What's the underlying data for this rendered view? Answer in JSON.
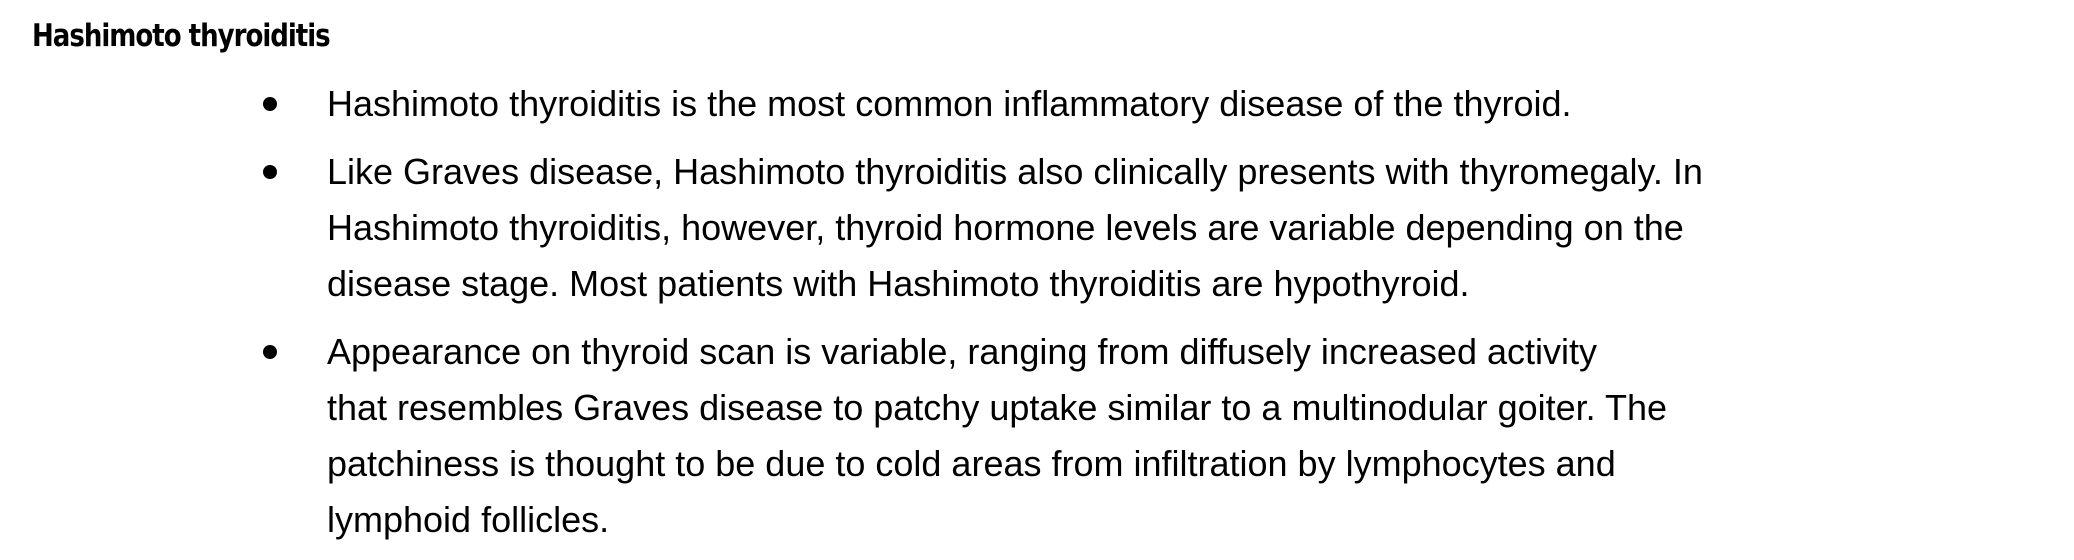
{
  "heading": "Hashimoto thyroiditis",
  "bullets": [
    {
      "lines": [
        "Hashimoto thyroiditis is the most common inflammatory disease of the thyroid."
      ]
    },
    {
      "lines": [
        "Like Graves disease, Hashimoto thyroiditis also clinically presents with thyromegaly. In",
        "Hashimoto thyroiditis, however, thyroid hormone levels are variable depending on the",
        "disease stage. Most patients with Hashimoto thyroiditis are hypothyroid."
      ]
    },
    {
      "lines": [
        "Appearance on thyroid scan is variable, ranging from diffusely increased activity",
        "that resembles Graves disease to patchy uptake similar to a multinodular goiter. The",
        "patchiness is thought to be due to cold areas from infiltration by lymphocytes and",
        "lymphoid follicles."
      ]
    }
  ]
}
